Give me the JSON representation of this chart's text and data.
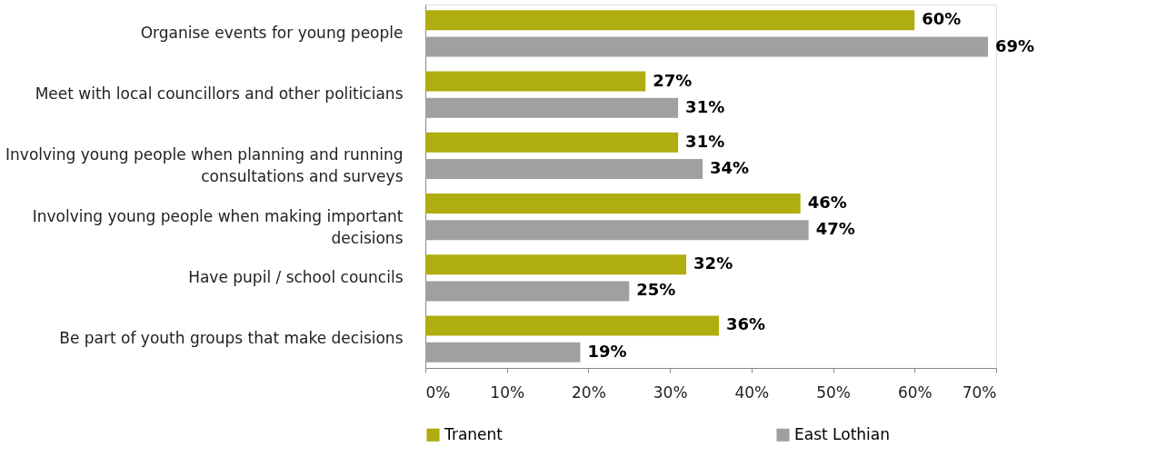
{
  "chart_data": {
    "type": "bar",
    "orientation": "horizontal",
    "categories": [
      "Organise events for young people",
      "Meet with local councillors and other politicians",
      "Involving young people when planning and running consultations and surveys",
      "Involving young people when making important decisions",
      "Have pupil / school councils",
      "Be part of youth groups that make decisions"
    ],
    "series": [
      {
        "name": "Tranent",
        "color": "#afad0f",
        "values": [
          60,
          27,
          31,
          46,
          32,
          36
        ],
        "value_labels": [
          "60%",
          "27%",
          "31%",
          "46%",
          "32%",
          "36%"
        ]
      },
      {
        "name": "East Lothian",
        "color": "#a0a0a0",
        "values": [
          69,
          31,
          34,
          47,
          25,
          19
        ],
        "value_labels": [
          "69%",
          "31%",
          "34%",
          "47%",
          "25%",
          "19%"
        ]
      }
    ],
    "xlim": [
      0,
      70
    ],
    "xticks": [
      {
        "value": 0,
        "label": "0%"
      },
      {
        "value": 10,
        "label": "10%"
      },
      {
        "value": 20,
        "label": "20%"
      },
      {
        "value": 30,
        "label": "30%"
      },
      {
        "value": 40,
        "label": "40%"
      },
      {
        "value": 50,
        "label": "50%"
      },
      {
        "value": 60,
        "label": "60%"
      },
      {
        "value": 70,
        "label": "70%"
      }
    ],
    "grid": false,
    "legend": "bottom"
  }
}
